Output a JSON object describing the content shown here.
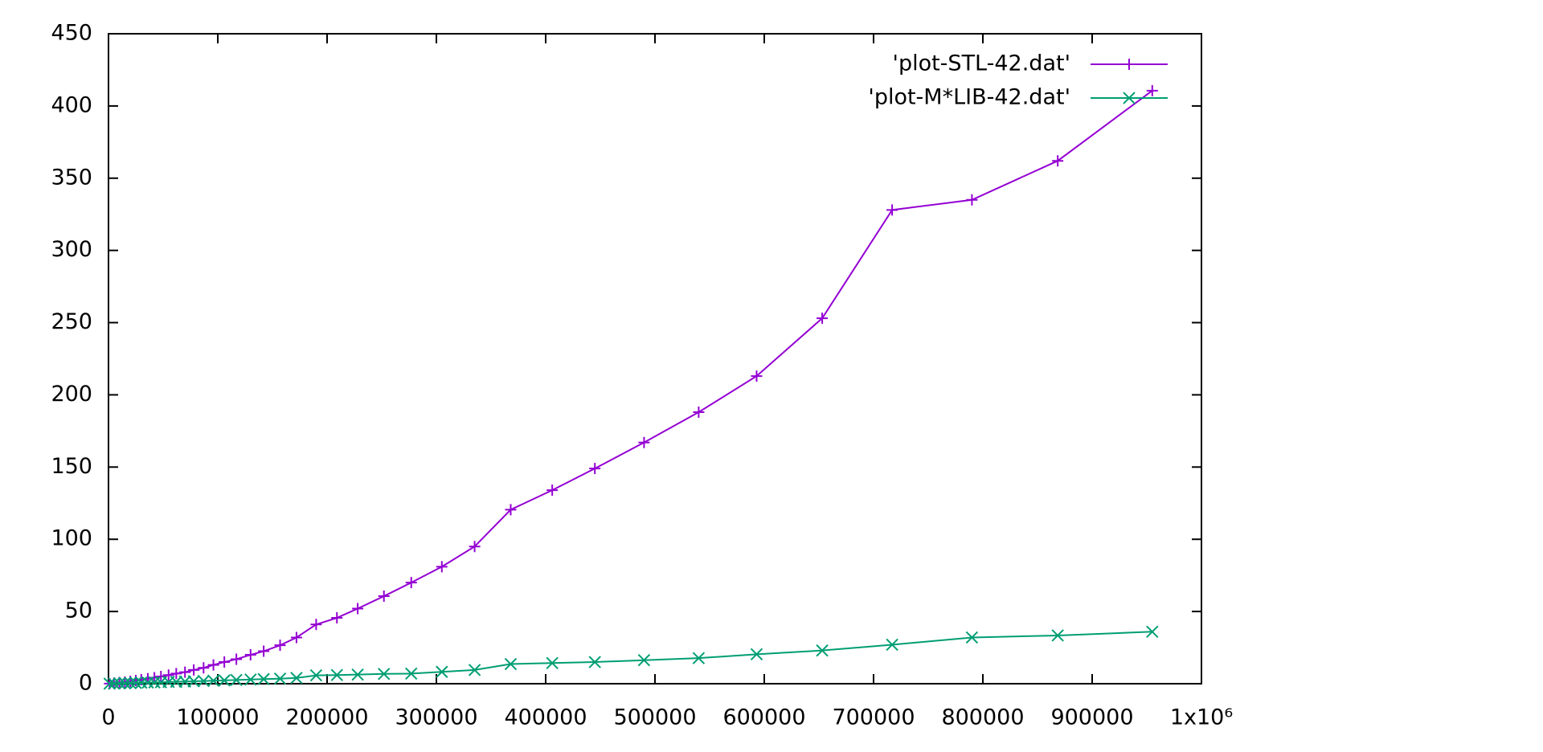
{
  "chart_data": {
    "type": "line",
    "xlim": [
      0,
      1000000
    ],
    "ylim": [
      0,
      450
    ],
    "xticks": [
      0,
      100000,
      200000,
      300000,
      400000,
      500000,
      600000,
      700000,
      800000,
      900000,
      {
        "value": 1000000,
        "label": "1x10⁶"
      }
    ],
    "yticks": [
      0,
      50,
      100,
      150,
      200,
      250,
      300,
      350,
      400,
      450
    ],
    "legend": "top-right",
    "x": [
      1000,
      5000,
      10000,
      15000,
      20000,
      25000,
      30000,
      36000,
      42000,
      48000,
      55000,
      62000,
      70000,
      78000,
      87000,
      96000,
      106000,
      117000,
      130000,
      142000,
      157000,
      172000,
      190000,
      209000,
      228000,
      252000,
      277000,
      305000,
      335000,
      368000,
      406000,
      445000,
      490000,
      540000,
      593000,
      653000,
      717000,
      790000,
      868500,
      955000
    ],
    "series": [
      {
        "name": "'plot-STL-42.dat'",
        "color": "#9400d3",
        "marker": "plus",
        "values": [
          0.1,
          0.4,
          0.8,
          1.2,
          1.7,
          2.2,
          2.8,
          3.5,
          4.2,
          5,
          6,
          7,
          8,
          9.5,
          11,
          13,
          15,
          17,
          20,
          22.5,
          26.6,
          32,
          41,
          45.6,
          52,
          60.6,
          70,
          81,
          95,
          120.5,
          134,
          149,
          167,
          188,
          213,
          253,
          328,
          335,
          362,
          410.6
        ]
      },
      {
        "name": "'plot-M*LIB-42.dat'",
        "color": "#009e73",
        "marker": "cross",
        "values": [
          0.03,
          0.12,
          0.25,
          0.35,
          0.45,
          0.55,
          0.7,
          0.8,
          0.9,
          1.0,
          1.2,
          1.3,
          1.5,
          1.7,
          1.9,
          2.1,
          2.3,
          2.6,
          2.9,
          3.2,
          3.5,
          4,
          5.8,
          6,
          6.3,
          6.8,
          7,
          8.2,
          9.5,
          13.6,
          14.3,
          15,
          16.3,
          17.7,
          20.4,
          23,
          27,
          32,
          33.4,
          36
        ]
      }
    ]
  }
}
